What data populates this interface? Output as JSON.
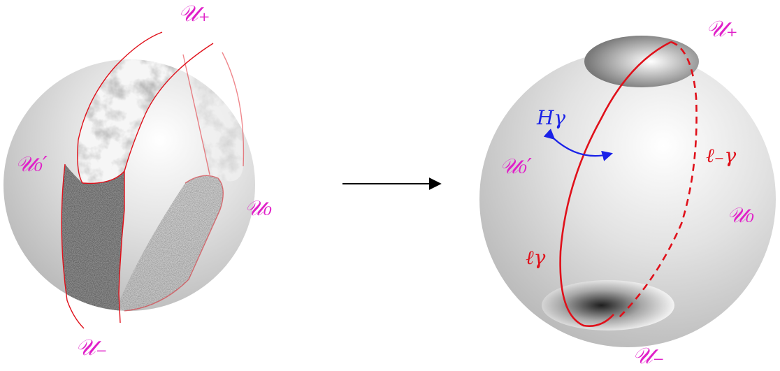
{
  "colors": {
    "label": "#e020c8",
    "curve": "#e0101a",
    "h_gamma": "#1a22e8",
    "arrow": "#000000"
  },
  "left_sphere": {
    "labels": {
      "u_plus": "𝒰₊",
      "u_zero_prime": "𝒰₀′",
      "u_zero": "𝒰₀",
      "u_minus": "𝒰₋"
    }
  },
  "right_sphere": {
    "labels": {
      "u_plus": "𝒰₊",
      "u_zero_prime": "𝒰₀′",
      "u_zero": "𝒰₀",
      "u_minus": "𝒰₋",
      "h_gamma": "H𝛾",
      "ell_gamma": "ℓ𝛾",
      "ell_minus_gamma": "ℓ₋𝛾"
    }
  },
  "icons": {
    "map_arrow": "right-arrow-icon",
    "rotation": "double-headed-curved-arrow-icon"
  }
}
